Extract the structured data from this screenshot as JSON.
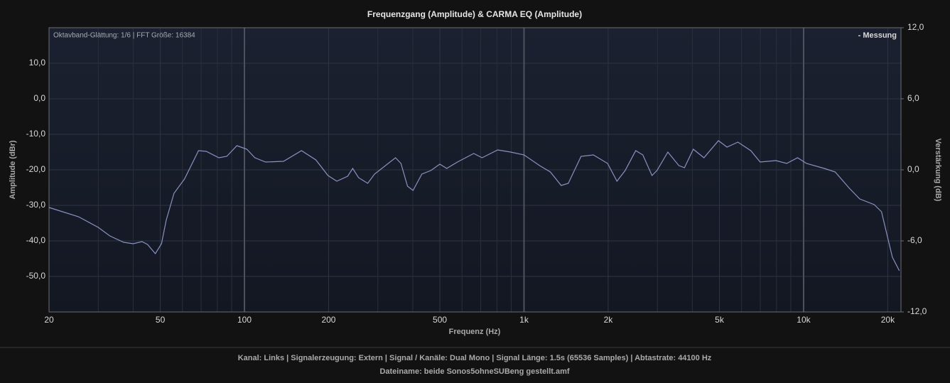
{
  "chart_data": {
    "type": "line",
    "title": "Frequenzgang (Amplitude) & CARMA EQ (Amplitude)",
    "annotation": "Oktavband-Glättung: 1/6 | FFT Größe: 16384",
    "x_label": "Frequenz (Hz)",
    "y_label": "Amplitude (dBr)",
    "y2_label": "Verstärkung (dB)",
    "x_scale": "log",
    "grid": true,
    "legend_position": "upper right",
    "xlim": [
      20,
      22300
    ],
    "xticks": [
      20,
      50,
      100,
      200,
      500,
      {
        "value": 1000,
        "label": "1k"
      },
      {
        "value": 2000,
        "label": "2k"
      },
      {
        "value": 5000,
        "label": "5k"
      },
      {
        "value": 10000,
        "label": "10k"
      },
      {
        "value": 20000,
        "label": "20k"
      }
    ],
    "xminor": [
      30,
      40,
      60,
      70,
      80,
      90,
      300,
      400,
      600,
      700,
      800,
      900,
      3000,
      4000,
      6000,
      7000,
      8000,
      9000
    ],
    "ylim": [
      -60,
      20
    ],
    "yticks": [
      {
        "value": 10,
        "label": "10,0"
      },
      {
        "value": 0,
        "label": "0,0"
      },
      {
        "value": -10,
        "label": "-10,0"
      },
      {
        "value": -20,
        "label": "-20,0"
      },
      {
        "value": -30,
        "label": "-30,0"
      },
      {
        "value": -40,
        "label": "-40,0"
      },
      {
        "value": -50,
        "label": "-50,0"
      }
    ],
    "y2lim": [
      -12,
      12
    ],
    "y2ticks": [
      {
        "value": 12,
        "label": "12,0"
      },
      {
        "value": 6,
        "label": "6,0"
      },
      {
        "value": 0,
        "label": "0,0"
      },
      {
        "value": -6,
        "label": "-6,0"
      },
      {
        "value": -12,
        "label": "-12,0"
      }
    ],
    "x": [
      20,
      25.5,
      30,
      33,
      37,
      40,
      43,
      45,
      48,
      50.5,
      52.5,
      56,
      61,
      68.5,
      73,
      81,
      86.5,
      94,
      102,
      109,
      119,
      138,
      160,
      180,
      199,
      214,
      234,
      244,
      256,
      276,
      292,
      322,
      347,
      363,
      383,
      401,
      431,
      464,
      500,
      529,
      578,
      661,
      708,
      805,
      896,
      1000,
      1137,
      1242,
      1358,
      1440,
      1600,
      1770,
      1990,
      2150,
      2300,
      2510,
      2660,
      2870,
      2990,
      3270,
      3580,
      3750,
      4030,
      4400,
      4960,
      5320,
      5820,
      6470,
      6990,
      7960,
      8700,
      9520,
      10240,
      11860,
      12970,
      14580,
      15880,
      17900,
      19000,
      20770,
      22000
    ],
    "series": [
      {
        "name": "- Messung",
        "color": "#8a92c0",
        "values": [
          -30.6,
          -33.2,
          -36.2,
          -38.6,
          -40.4,
          -40.8,
          -40.2,
          -41,
          -43.6,
          -40.8,
          -34.2,
          -26.6,
          -22.6,
          -14.6,
          -14.8,
          -16.6,
          -16.2,
          -13.2,
          -14.2,
          -16.6,
          -17.8,
          -17.6,
          -14.6,
          -17.2,
          -21.6,
          -23.2,
          -21.8,
          -19.6,
          -22.2,
          -23.8,
          -21.2,
          -18.6,
          -16.6,
          -18.2,
          -24.6,
          -25.8,
          -21.2,
          -20.2,
          -18.4,
          -19.6,
          -17.8,
          -15.4,
          -16.6,
          -14.4,
          -15,
          -15.8,
          -18.8,
          -20.6,
          -24.4,
          -23.8,
          -16.2,
          -15.8,
          -18.2,
          -23.2,
          -20.2,
          -14.6,
          -15.8,
          -21.6,
          -20.2,
          -15,
          -18.8,
          -19.4,
          -14.2,
          -16.6,
          -11.8,
          -13.6,
          -12.2,
          -14.6,
          -17.8,
          -17.4,
          -18.2,
          -16.6,
          -18.2,
          -19.6,
          -20.6,
          -25.2,
          -28.2,
          -29.8,
          -31.8,
          -44.6,
          -48.4
        ]
      }
    ]
  },
  "footer": {
    "line1": "Kanal: Links  |  Signalerzeugung: Extern   |  Signal / Kanäle: Dual Mono  |  Signal Länge: 1.5s (65536 Samples)  |  Abtastrate: 44100 Hz",
    "line2": "Dateiname: beide Sonos5ohneSUBeng gestellt.amf"
  }
}
